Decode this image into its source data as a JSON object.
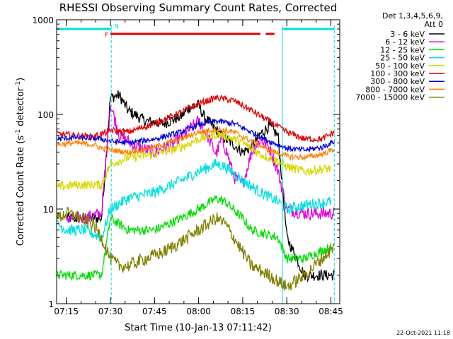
{
  "chart_data": {
    "type": "line",
    "title": "RHESSI Observing Summary Count Rates, Corrected",
    "xlabel": "Start Time (10-Jan-13 07:11:42)",
    "ylabel_prefix": "Corrected Count Rate (s",
    "ylabel_sup1": "-1",
    "ylabel_mid": " detector",
    "ylabel_sup2": "-1",
    "ylabel_suffix": ")",
    "y_scale": "log",
    "ylim": [
      1,
      1000
    ],
    "xlim": [
      7.195,
      8.8
    ],
    "x_ticks": [
      {
        "v": 7.25,
        "label": "07:15"
      },
      {
        "v": 7.5,
        "label": "07:30"
      },
      {
        "v": 7.75,
        "label": "07:45"
      },
      {
        "v": 8.0,
        "label": "08:00"
      },
      {
        "v": 8.25,
        "label": "08:15"
      },
      {
        "v": 8.5,
        "label": "08:30"
      },
      {
        "v": 8.75,
        "label": "08:45"
      }
    ],
    "y_ticks": [
      {
        "v": 1,
        "label": "1"
      },
      {
        "v": 10,
        "label": "10"
      },
      {
        "v": 100,
        "label": "100"
      },
      {
        "v": 1000,
        "label": "1000"
      }
    ],
    "legend_header": [
      "Det 1,3,4,5,6,9,",
      "Att 0"
    ],
    "legend_position": "right",
    "night_start": 7.195,
    "night_end": 7.505,
    "night_start2": 8.475,
    "night_end2": 8.769,
    "saa_label": "N",
    "flare_label": "F",
    "flare_bars": [
      [
        7.5,
        8.35
      ],
      [
        8.38,
        8.43
      ]
    ],
    "series": [
      {
        "name": "3 - 6 keV",
        "color": "#000000",
        "base": [
          [
            7.25,
            8
          ],
          [
            7.35,
            8
          ],
          [
            7.45,
            8
          ],
          [
            7.5,
            150
          ],
          [
            7.55,
            160
          ],
          [
            7.6,
            110
          ],
          [
            7.7,
            85
          ],
          [
            7.8,
            80
          ],
          [
            7.9,
            95
          ],
          [
            7.95,
            120
          ],
          [
            8.0,
            125
          ],
          [
            8.03,
            95
          ],
          [
            8.08,
            75
          ],
          [
            8.15,
            55
          ],
          [
            8.2,
            48
          ],
          [
            8.25,
            40
          ],
          [
            8.3,
            45
          ],
          [
            8.35,
            62
          ],
          [
            8.4,
            75
          ],
          [
            8.45,
            60
          ],
          [
            8.5,
            5
          ],
          [
            8.6,
            2
          ],
          [
            8.77,
            2
          ]
        ],
        "noise": 0.06
      },
      {
        "name": "6 - 12 keV",
        "color": "#e000e0",
        "base": [
          [
            7.25,
            8
          ],
          [
            7.35,
            8
          ],
          [
            7.45,
            9
          ],
          [
            7.5,
            130
          ],
          [
            7.55,
            60
          ],
          [
            7.65,
            45
          ],
          [
            7.75,
            40
          ],
          [
            7.85,
            48
          ],
          [
            7.95,
            70
          ],
          [
            8.0,
            85
          ],
          [
            8.05,
            60
          ],
          [
            8.08,
            45
          ],
          [
            8.1,
            38
          ],
          [
            8.13,
            55
          ],
          [
            8.16,
            40
          ],
          [
            8.2,
            22
          ],
          [
            8.25,
            18
          ],
          [
            8.3,
            40
          ],
          [
            8.35,
            55
          ],
          [
            8.4,
            45
          ],
          [
            8.45,
            25
          ],
          [
            8.5,
            10
          ],
          [
            8.6,
            9
          ],
          [
            8.77,
            9
          ]
        ],
        "noise": 0.07
      },
      {
        "name": "12 - 25 keV",
        "color": "#00e000",
        "base": [
          [
            7.2,
            2
          ],
          [
            7.3,
            2
          ],
          [
            7.4,
            2
          ],
          [
            7.45,
            2
          ],
          [
            7.5,
            8
          ],
          [
            7.6,
            6
          ],
          [
            7.75,
            6
          ],
          [
            7.9,
            8
          ],
          [
            8.0,
            10
          ],
          [
            8.1,
            13
          ],
          [
            8.15,
            12
          ],
          [
            8.25,
            8
          ],
          [
            8.3,
            6
          ],
          [
            8.45,
            5
          ],
          [
            8.5,
            3
          ],
          [
            8.6,
            3
          ],
          [
            8.75,
            4
          ]
        ],
        "noise": 0.05
      },
      {
        "name": "25 - 50 keV",
        "color": "#00e0e0",
        "base": [
          [
            7.2,
            7
          ],
          [
            7.25,
            6
          ],
          [
            7.3,
            6
          ],
          [
            7.35,
            6
          ],
          [
            7.45,
            5
          ],
          [
            7.5,
            10
          ],
          [
            7.6,
            13
          ],
          [
            7.75,
            15
          ],
          [
            7.9,
            20
          ],
          [
            8.0,
            25
          ],
          [
            8.1,
            30
          ],
          [
            8.15,
            28
          ],
          [
            8.25,
            20
          ],
          [
            8.35,
            15
          ],
          [
            8.45,
            12
          ],
          [
            8.5,
            10
          ],
          [
            8.6,
            11
          ],
          [
            8.75,
            12
          ]
        ],
        "noise": 0.06
      },
      {
        "name": "50 - 100 keV",
        "color": "#d8d800",
        "base": [
          [
            7.2,
            17
          ],
          [
            7.3,
            18
          ],
          [
            7.4,
            18
          ],
          [
            7.45,
            18
          ],
          [
            7.5,
            30
          ],
          [
            7.6,
            35
          ],
          [
            7.75,
            38
          ],
          [
            7.9,
            45
          ],
          [
            8.0,
            55
          ],
          [
            8.1,
            62
          ],
          [
            8.15,
            60
          ],
          [
            8.25,
            50
          ],
          [
            8.35,
            38
          ],
          [
            8.45,
            32
          ],
          [
            8.5,
            28
          ],
          [
            8.6,
            25
          ],
          [
            8.75,
            27
          ]
        ],
        "noise": 0.05
      },
      {
        "name": "100 - 300 keV",
        "color": "#e00000",
        "base": [
          [
            7.2,
            62
          ],
          [
            7.3,
            60
          ],
          [
            7.4,
            58
          ],
          [
            7.45,
            62
          ],
          [
            7.5,
            68
          ],
          [
            7.6,
            65
          ],
          [
            7.75,
            80
          ],
          [
            7.9,
            105
          ],
          [
            8.0,
            130
          ],
          [
            8.1,
            150
          ],
          [
            8.2,
            140
          ],
          [
            8.3,
            110
          ],
          [
            8.4,
            85
          ],
          [
            8.5,
            65
          ],
          [
            8.6,
            55
          ],
          [
            8.7,
            55
          ],
          [
            8.77,
            65
          ]
        ],
        "noise": 0.035
      },
      {
        "name": "300 - 800 keV",
        "color": "#0000e0",
        "base": [
          [
            7.2,
            55
          ],
          [
            7.3,
            57
          ],
          [
            7.4,
            56
          ],
          [
            7.45,
            55
          ],
          [
            7.5,
            52
          ],
          [
            7.6,
            50
          ],
          [
            7.75,
            55
          ],
          [
            7.9,
            65
          ],
          [
            8.0,
            78
          ],
          [
            8.1,
            85
          ],
          [
            8.2,
            80
          ],
          [
            8.3,
            65
          ],
          [
            8.4,
            52
          ],
          [
            8.5,
            44
          ],
          [
            8.6,
            42
          ],
          [
            8.7,
            45
          ],
          [
            8.77,
            52
          ]
        ],
        "noise": 0.03
      },
      {
        "name": "800 - 7000 keV",
        "color": "#ff8000",
        "base": [
          [
            7.2,
            48
          ],
          [
            7.3,
            50
          ],
          [
            7.4,
            48
          ],
          [
            7.45,
            44
          ],
          [
            7.5,
            42
          ],
          [
            7.6,
            40
          ],
          [
            7.75,
            45
          ],
          [
            7.9,
            55
          ],
          [
            8.0,
            65
          ],
          [
            8.1,
            70
          ],
          [
            8.2,
            65
          ],
          [
            8.3,
            52
          ],
          [
            8.4,
            42
          ],
          [
            8.5,
            36
          ],
          [
            8.6,
            35
          ],
          [
            8.7,
            38
          ],
          [
            8.77,
            43
          ]
        ],
        "noise": 0.03
      },
      {
        "name": "7000 - 15000 keV",
        "color": "#808000",
        "base": [
          [
            7.2,
            8
          ],
          [
            7.25,
            9
          ],
          [
            7.3,
            8.5
          ],
          [
            7.4,
            7
          ],
          [
            7.45,
            5
          ],
          [
            7.5,
            3
          ],
          [
            7.55,
            2.5
          ],
          [
            7.6,
            2.5
          ],
          [
            7.7,
            3
          ],
          [
            7.8,
            3.5
          ],
          [
            7.9,
            4.5
          ],
          [
            8.0,
            6
          ],
          [
            8.1,
            8
          ],
          [
            8.15,
            7
          ],
          [
            8.2,
            5
          ],
          [
            8.25,
            3.5
          ],
          [
            8.3,
            2.5
          ],
          [
            8.4,
            2
          ],
          [
            8.5,
            1.5
          ],
          [
            8.6,
            2
          ],
          [
            8.7,
            3
          ],
          [
            8.77,
            4
          ]
        ],
        "noise": 0.07
      }
    ]
  },
  "footer": {
    "timestamp": "22-Oct-2021 11:18"
  }
}
